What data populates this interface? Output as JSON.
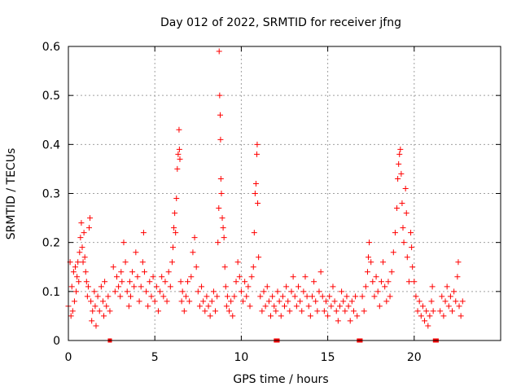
{
  "chart_data": {
    "type": "scatter",
    "title": "Day 012 of 2022, SRMTID for receiver jfng",
    "xlabel": "GPS time / hours",
    "ylabel": "SRMTID / TECUs",
    "xlim": [
      0,
      25
    ],
    "ylim": [
      0,
      0.6
    ],
    "x_ticks": [
      0,
      5,
      10,
      15,
      20
    ],
    "y_ticks": [
      0,
      0.1,
      0.2,
      0.3,
      0.4,
      0.5,
      0.6
    ],
    "x_tick_labels": [
      "0",
      "5",
      "10",
      "15",
      "20"
    ],
    "y_tick_labels": [
      "0",
      "0.1",
      "0.2",
      "0.3",
      "0.4",
      "0.5",
      "0.6"
    ],
    "grid": true,
    "marker": "plus",
    "color": "#ff0000",
    "series": [
      {
        "name": "SRMTID",
        "points": [
          [
            0.0,
            0.07
          ],
          [
            0.1,
            0.16
          ],
          [
            0.15,
            0.05
          ],
          [
            0.2,
            0.11
          ],
          [
            0.25,
            0.06
          ],
          [
            0.3,
            0.14
          ],
          [
            0.35,
            0.08
          ],
          [
            0.4,
            0.15
          ],
          [
            0.45,
            0.1
          ],
          [
            0.5,
            0.13
          ],
          [
            0.55,
            0.16
          ],
          [
            0.6,
            0.12
          ],
          [
            0.65,
            0.18
          ],
          [
            0.7,
            0.21
          ],
          [
            0.75,
            0.24
          ],
          [
            0.8,
            0.19
          ],
          [
            0.85,
            0.16
          ],
          [
            0.9,
            0.22
          ],
          [
            0.95,
            0.17
          ],
          [
            1.0,
            0.14
          ],
          [
            1.05,
            0.12
          ],
          [
            1.1,
            0.09
          ],
          [
            1.15,
            0.11
          ],
          [
            1.2,
            0.23
          ],
          [
            1.25,
            0.25
          ],
          [
            1.3,
            0.08
          ],
          [
            1.35,
            0.04
          ],
          [
            1.4,
            0.06
          ],
          [
            1.5,
            0.1
          ],
          [
            1.55,
            0.07
          ],
          [
            1.6,
            0.03
          ],
          [
            1.7,
            0.09
          ],
          [
            1.8,
            0.06
          ],
          [
            1.9,
            0.11
          ],
          [
            2.0,
            0.08
          ],
          [
            2.05,
            0.05
          ],
          [
            2.1,
            0.12
          ],
          [
            2.2,
            0.07
          ],
          [
            2.3,
            0.09
          ],
          [
            2.4,
            0.06
          ],
          [
            2.6,
            0.15
          ],
          [
            2.7,
            0.1
          ],
          [
            2.8,
            0.13
          ],
          [
            2.9,
            0.11
          ],
          [
            3.0,
            0.09
          ],
          [
            3.05,
            0.14
          ],
          [
            3.1,
            0.12
          ],
          [
            3.2,
            0.2
          ],
          [
            3.3,
            0.16
          ],
          [
            3.4,
            0.1
          ],
          [
            3.5,
            0.07
          ],
          [
            3.55,
            0.12
          ],
          [
            3.6,
            0.09
          ],
          [
            3.7,
            0.14
          ],
          [
            3.8,
            0.11
          ],
          [
            3.9,
            0.18
          ],
          [
            4.0,
            0.13
          ],
          [
            4.1,
            0.08
          ],
          [
            4.2,
            0.11
          ],
          [
            4.3,
            0.16
          ],
          [
            4.35,
            0.22
          ],
          [
            4.4,
            0.14
          ],
          [
            4.5,
            0.1
          ],
          [
            4.6,
            0.07
          ],
          [
            4.7,
            0.12
          ],
          [
            4.8,
            0.09
          ],
          [
            4.9,
            0.13
          ],
          [
            5.0,
            0.08
          ],
          [
            5.1,
            0.11
          ],
          [
            5.2,
            0.06
          ],
          [
            5.3,
            0.1
          ],
          [
            5.4,
            0.13
          ],
          [
            5.5,
            0.09
          ],
          [
            5.6,
            0.12
          ],
          [
            5.7,
            0.08
          ],
          [
            5.8,
            0.14
          ],
          [
            5.9,
            0.11
          ],
          [
            6.0,
            0.16
          ],
          [
            6.05,
            0.19
          ],
          [
            6.1,
            0.23
          ],
          [
            6.15,
            0.26
          ],
          [
            6.2,
            0.22
          ],
          [
            6.25,
            0.29
          ],
          [
            6.3,
            0.35
          ],
          [
            6.35,
            0.38
          ],
          [
            6.4,
            0.43
          ],
          [
            6.42,
            0.39
          ],
          [
            6.45,
            0.37
          ],
          [
            6.5,
            0.12
          ],
          [
            6.55,
            0.08
          ],
          [
            6.6,
            0.1
          ],
          [
            6.7,
            0.06
          ],
          [
            6.8,
            0.09
          ],
          [
            6.9,
            0.12
          ],
          [
            7.0,
            0.08
          ],
          [
            7.1,
            0.13
          ],
          [
            7.2,
            0.18
          ],
          [
            7.3,
            0.21
          ],
          [
            7.4,
            0.15
          ],
          [
            7.5,
            0.1
          ],
          [
            7.6,
            0.07
          ],
          [
            7.7,
            0.11
          ],
          [
            7.8,
            0.08
          ],
          [
            7.9,
            0.06
          ],
          [
            8.0,
            0.09
          ],
          [
            8.1,
            0.07
          ],
          [
            8.2,
            0.05
          ],
          [
            8.3,
            0.08
          ],
          [
            8.4,
            0.1
          ],
          [
            8.5,
            0.06
          ],
          [
            8.6,
            0.09
          ],
          [
            8.65,
            0.2
          ],
          [
            8.7,
            0.27
          ],
          [
            8.72,
            0.59
          ],
          [
            8.75,
            0.5
          ],
          [
            8.78,
            0.46
          ],
          [
            8.8,
            0.41
          ],
          [
            8.82,
            0.33
          ],
          [
            8.85,
            0.3
          ],
          [
            8.9,
            0.25
          ],
          [
            8.95,
            0.23
          ],
          [
            9.0,
            0.21
          ],
          [
            9.05,
            0.15
          ],
          [
            9.1,
            0.11
          ],
          [
            9.15,
            0.07
          ],
          [
            9.2,
            0.09
          ],
          [
            9.3,
            0.06
          ],
          [
            9.4,
            0.08
          ],
          [
            9.5,
            0.05
          ],
          [
            9.6,
            0.09
          ],
          [
            9.7,
            0.12
          ],
          [
            9.8,
            0.16
          ],
          [
            9.9,
            0.13
          ],
          [
            10.0,
            0.1
          ],
          [
            10.1,
            0.08
          ],
          [
            10.2,
            0.12
          ],
          [
            10.3,
            0.09
          ],
          [
            10.4,
            0.11
          ],
          [
            10.5,
            0.07
          ],
          [
            10.6,
            0.13
          ],
          [
            10.7,
            0.15
          ],
          [
            10.75,
            0.22
          ],
          [
            10.8,
            0.3
          ],
          [
            10.85,
            0.32
          ],
          [
            10.9,
            0.38
          ],
          [
            10.92,
            0.4
          ],
          [
            10.95,
            0.28
          ],
          [
            11.0,
            0.17
          ],
          [
            11.1,
            0.09
          ],
          [
            11.2,
            0.06
          ],
          [
            11.3,
            0.1
          ],
          [
            11.4,
            0.07
          ],
          [
            11.5,
            0.11
          ],
          [
            11.6,
            0.08
          ],
          [
            11.7,
            0.05
          ],
          [
            11.8,
            0.09
          ],
          [
            11.9,
            0.07
          ],
          [
            12.0,
            0.06
          ],
          [
            12.1,
            0.1
          ],
          [
            12.2,
            0.08
          ],
          [
            12.3,
            0.05
          ],
          [
            12.4,
            0.09
          ],
          [
            12.5,
            0.07
          ],
          [
            12.6,
            0.11
          ],
          [
            12.7,
            0.08
          ],
          [
            12.8,
            0.06
          ],
          [
            12.9,
            0.1
          ],
          [
            13.0,
            0.13
          ],
          [
            13.1,
            0.09
          ],
          [
            13.2,
            0.07
          ],
          [
            13.3,
            0.11
          ],
          [
            13.4,
            0.08
          ],
          [
            13.5,
            0.06
          ],
          [
            13.6,
            0.1
          ],
          [
            13.7,
            0.13
          ],
          [
            13.8,
            0.09
          ],
          [
            13.9,
            0.07
          ],
          [
            14.0,
            0.05
          ],
          [
            14.1,
            0.09
          ],
          [
            14.2,
            0.12
          ],
          [
            14.3,
            0.08
          ],
          [
            14.4,
            0.06
          ],
          [
            14.5,
            0.1
          ],
          [
            14.6,
            0.14
          ],
          [
            14.7,
            0.09
          ],
          [
            14.8,
            0.06
          ],
          [
            14.9,
            0.08
          ],
          [
            15.0,
            0.05
          ],
          [
            15.1,
            0.09
          ],
          [
            15.2,
            0.07
          ],
          [
            15.3,
            0.11
          ],
          [
            15.4,
            0.08
          ],
          [
            15.5,
            0.06
          ],
          [
            15.6,
            0.04
          ],
          [
            15.7,
            0.07
          ],
          [
            15.8,
            0.1
          ],
          [
            15.9,
            0.08
          ],
          [
            16.0,
            0.06
          ],
          [
            16.1,
            0.09
          ],
          [
            16.2,
            0.07
          ],
          [
            16.3,
            0.04
          ],
          [
            16.4,
            0.08
          ],
          [
            16.5,
            0.06
          ],
          [
            16.6,
            0.09
          ],
          [
            16.7,
            0.05
          ],
          [
            17.0,
            0.09
          ],
          [
            17.1,
            0.06
          ],
          [
            17.2,
            0.11
          ],
          [
            17.3,
            0.14
          ],
          [
            17.35,
            0.17
          ],
          [
            17.4,
            0.2
          ],
          [
            17.5,
            0.16
          ],
          [
            17.6,
            0.12
          ],
          [
            17.7,
            0.09
          ],
          [
            17.8,
            0.13
          ],
          [
            17.9,
            0.1
          ],
          [
            18.0,
            0.07
          ],
          [
            18.1,
            0.12
          ],
          [
            18.2,
            0.16
          ],
          [
            18.3,
            0.11
          ],
          [
            18.4,
            0.08
          ],
          [
            18.5,
            0.12
          ],
          [
            18.6,
            0.09
          ],
          [
            18.7,
            0.14
          ],
          [
            18.8,
            0.18
          ],
          [
            18.9,
            0.22
          ],
          [
            19.0,
            0.27
          ],
          [
            19.05,
            0.33
          ],
          [
            19.1,
            0.36
          ],
          [
            19.15,
            0.38
          ],
          [
            19.2,
            0.39
          ],
          [
            19.25,
            0.34
          ],
          [
            19.3,
            0.28
          ],
          [
            19.35,
            0.23
          ],
          [
            19.4,
            0.2
          ],
          [
            19.5,
            0.31
          ],
          [
            19.55,
            0.26
          ],
          [
            19.6,
            0.17
          ],
          [
            19.7,
            0.12
          ],
          [
            19.8,
            0.22
          ],
          [
            19.85,
            0.19
          ],
          [
            19.9,
            0.15
          ],
          [
            20.0,
            0.12
          ],
          [
            20.1,
            0.09
          ],
          [
            20.2,
            0.06
          ],
          [
            20.3,
            0.08
          ],
          [
            20.4,
            0.05
          ],
          [
            20.5,
            0.07
          ],
          [
            20.6,
            0.04
          ],
          [
            20.7,
            0.06
          ],
          [
            20.8,
            0.03
          ],
          [
            20.9,
            0.05
          ],
          [
            21.0,
            0.08
          ],
          [
            21.05,
            0.11
          ],
          [
            21.1,
            0.06
          ],
          [
            21.5,
            0.06
          ],
          [
            21.6,
            0.09
          ],
          [
            21.7,
            0.05
          ],
          [
            21.8,
            0.08
          ],
          [
            21.9,
            0.11
          ],
          [
            22.0,
            0.07
          ],
          [
            22.1,
            0.09
          ],
          [
            22.2,
            0.06
          ],
          [
            22.3,
            0.1
          ],
          [
            22.4,
            0.08
          ],
          [
            22.5,
            0.13
          ],
          [
            22.55,
            0.16
          ],
          [
            22.6,
            0.07
          ],
          [
            22.7,
            0.05
          ],
          [
            22.8,
            0.08
          ]
        ]
      }
    ],
    "gap_markers_x": [
      2.4,
      12.0,
      12.1,
      16.8,
      16.9,
      21.2,
      21.3
    ]
  }
}
